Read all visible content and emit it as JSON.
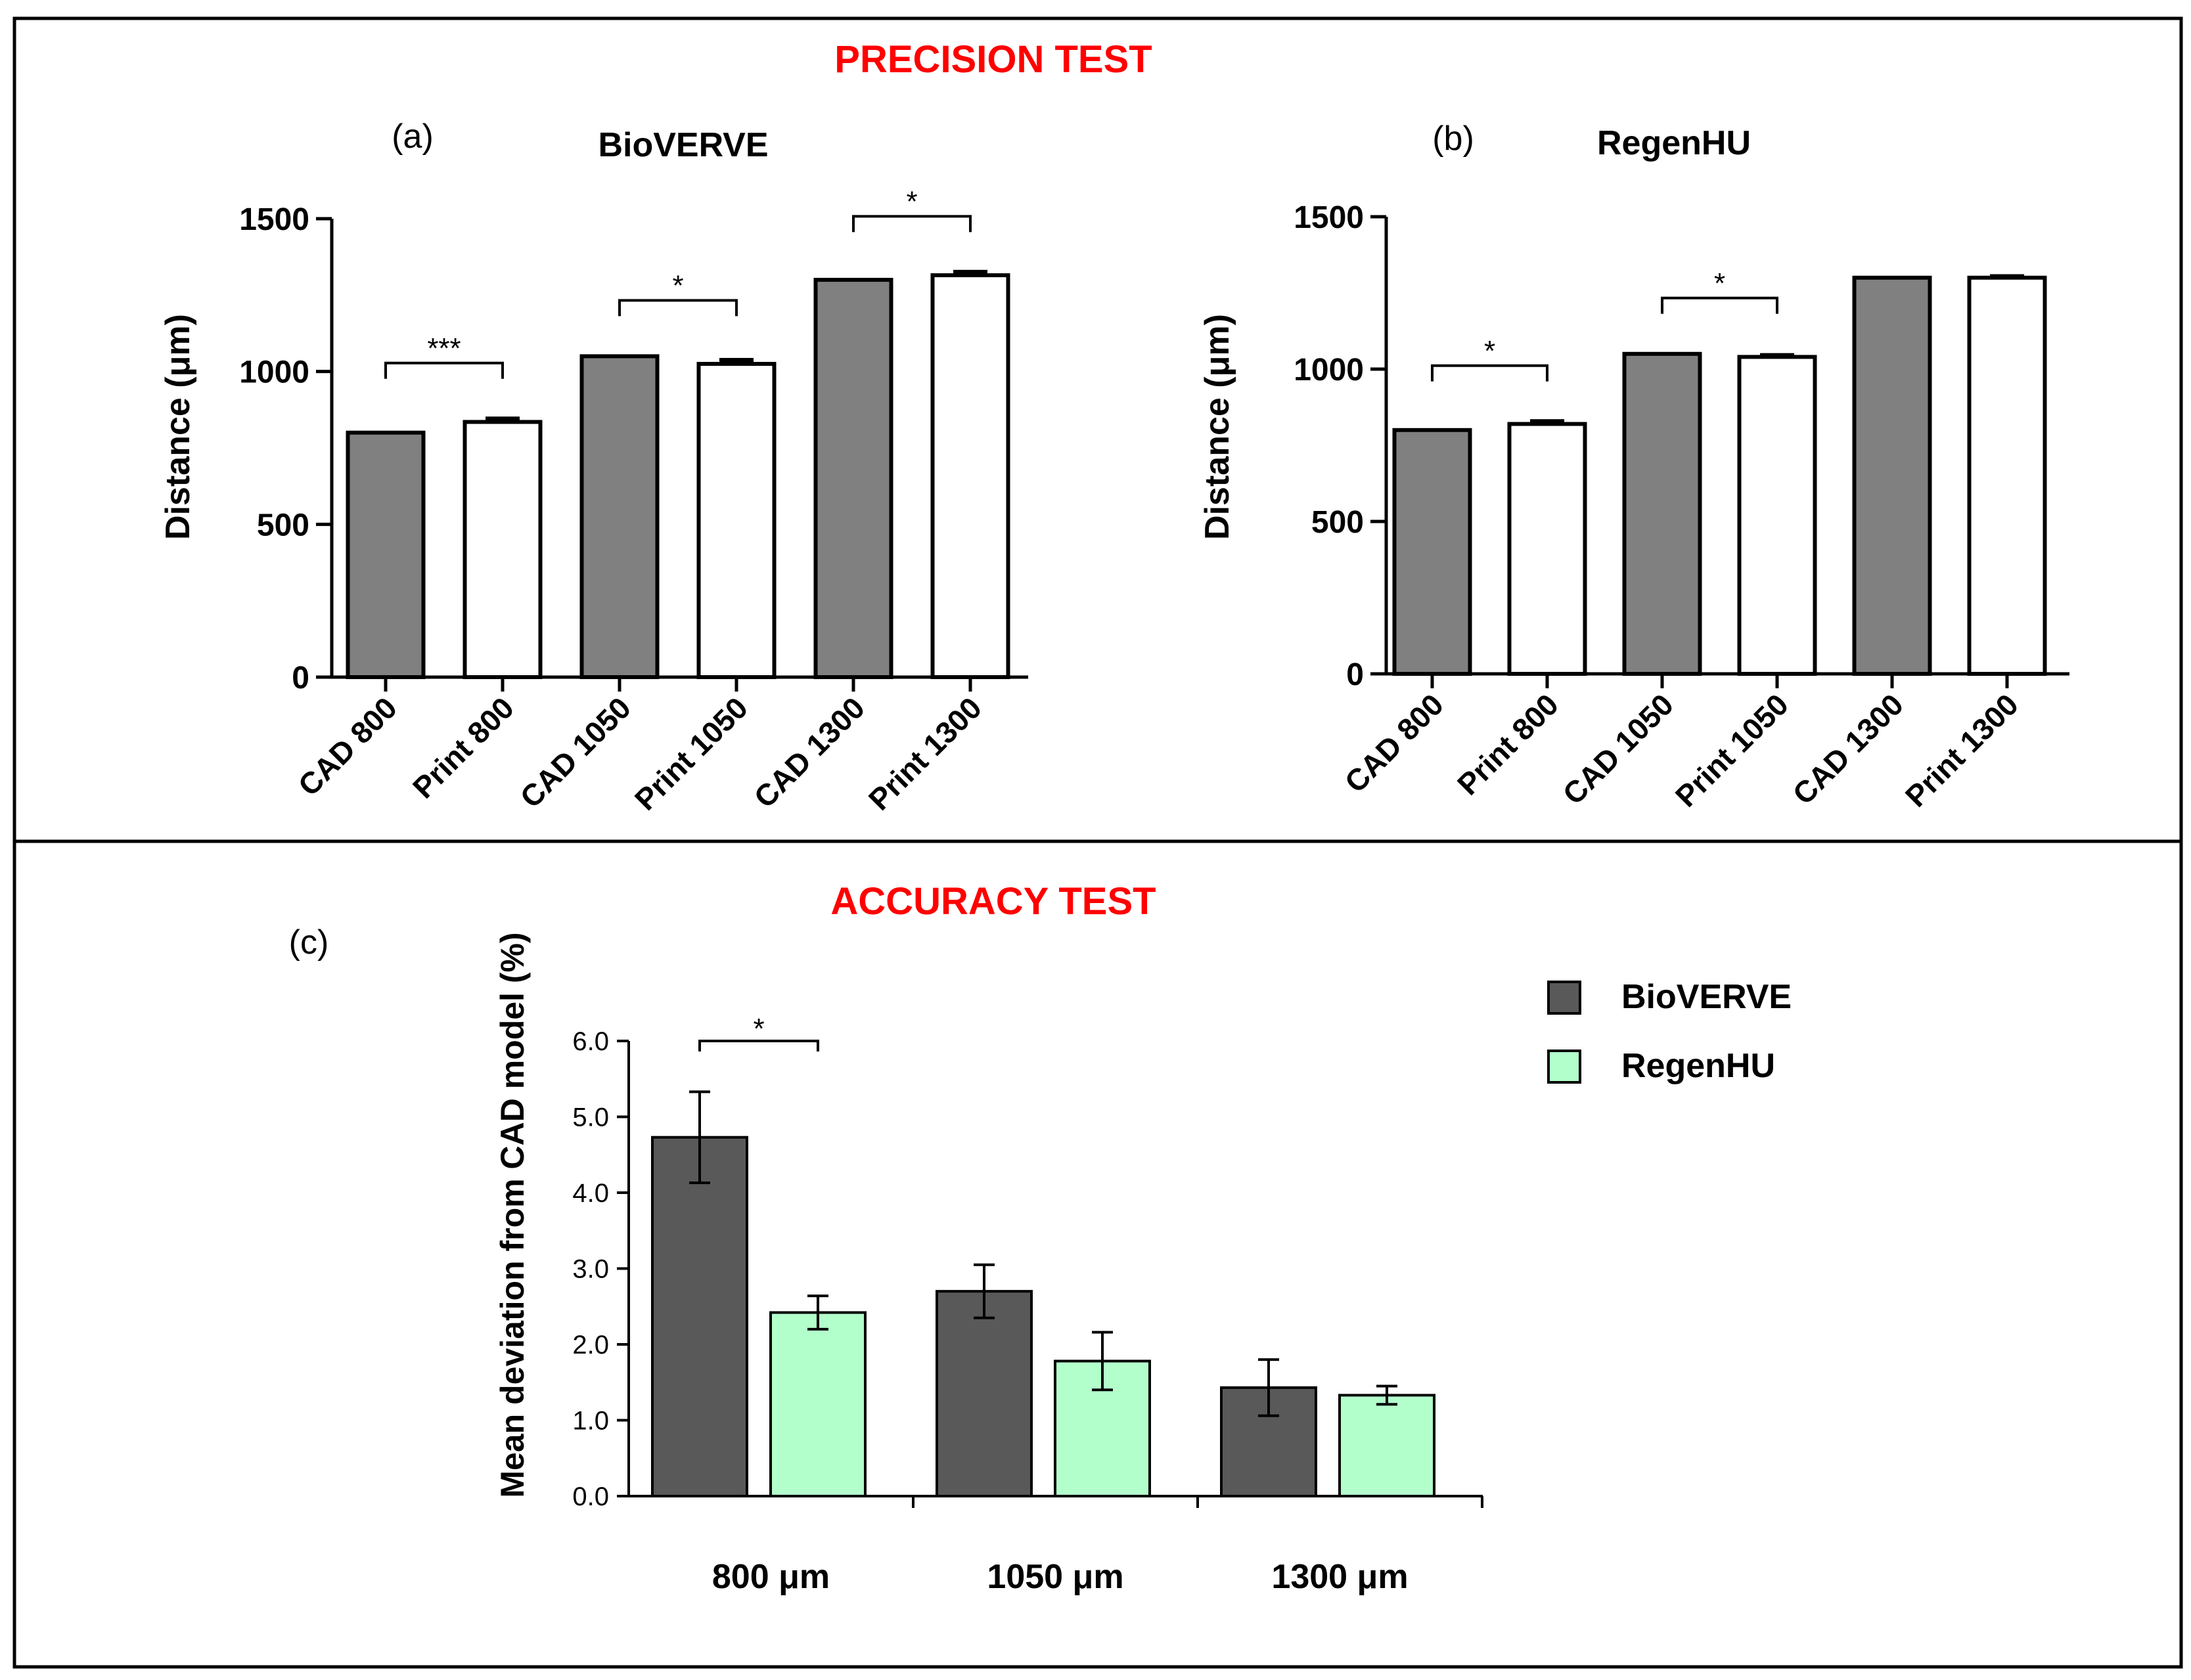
{
  "figure": {
    "precision_heading": "PRECISION TEST",
    "accuracy_heading": "ACCURACY TEST",
    "heading_color": "#ff0000"
  },
  "chart_data": [
    {
      "id": "a",
      "panel_label": "(a)",
      "title": "BioVERVE",
      "type": "bar",
      "ylabel": "Distance (μm)",
      "ylim": [
        0,
        1500
      ],
      "yticks": [
        "0",
        "500",
        "1000",
        "1500"
      ],
      "categories": [
        "CAD 800",
        "Print 800",
        "CAD 1050",
        "Print 1050",
        "CAD 1300",
        "Print 1300"
      ],
      "values": [
        800,
        835,
        1050,
        1025,
        1300,
        1315
      ],
      "errors": [
        0,
        10,
        0,
        12,
        0,
        10
      ],
      "fills": [
        "#808080",
        "#ffffff",
        "#808080",
        "#ffffff",
        "#808080",
        "#ffffff"
      ],
      "significance": [
        {
          "from": 0,
          "to": 1,
          "label": "***"
        },
        {
          "from": 2,
          "to": 3,
          "label": "*"
        },
        {
          "from": 4,
          "to": 5,
          "label": "*"
        }
      ]
    },
    {
      "id": "b",
      "panel_label": "(b)",
      "title": "RegenHU",
      "type": "bar",
      "ylabel": "Distance (μm)",
      "ylim": [
        0,
        1500
      ],
      "yticks": [
        "0",
        "500",
        "1000",
        "1500"
      ],
      "categories": [
        "CAD 800",
        "Print 800",
        "CAD 1050",
        "Print 1050",
        "CAD 1300",
        "Print 1300"
      ],
      "values": [
        800,
        820,
        1050,
        1040,
        1300,
        1300
      ],
      "errors": [
        0,
        8,
        0,
        5,
        0,
        4
      ],
      "fills": [
        "#808080",
        "#ffffff",
        "#808080",
        "#ffffff",
        "#808080",
        "#ffffff"
      ],
      "significance": [
        {
          "from": 0,
          "to": 1,
          "label": "*"
        },
        {
          "from": 2,
          "to": 3,
          "label": "*"
        }
      ]
    },
    {
      "id": "c",
      "panel_label": "(c)",
      "title": "",
      "type": "bar",
      "ylabel": "Mean deviation from CAD model (%)",
      "ylim": [
        0,
        6
      ],
      "yticks": [
        "0.0",
        "1.0",
        "2.0",
        "3.0",
        "4.0",
        "5.0",
        "6.0"
      ],
      "categories": [
        "800 μm",
        "1050 μm",
        "1300 μm"
      ],
      "series": [
        {
          "name": "BioVERVE",
          "color": "#595959",
          "values": [
            4.73,
            2.7,
            1.43
          ],
          "errors": [
            0.6,
            0.35,
            0.37
          ]
        },
        {
          "name": "RegenHU",
          "color": "#b3ffcc",
          "values": [
            2.42,
            1.78,
            1.33
          ],
          "errors": [
            0.22,
            0.38,
            0.12
          ]
        }
      ],
      "legend_position": "top-right",
      "significance": [
        {
          "category": 0,
          "label": "*"
        }
      ]
    }
  ]
}
